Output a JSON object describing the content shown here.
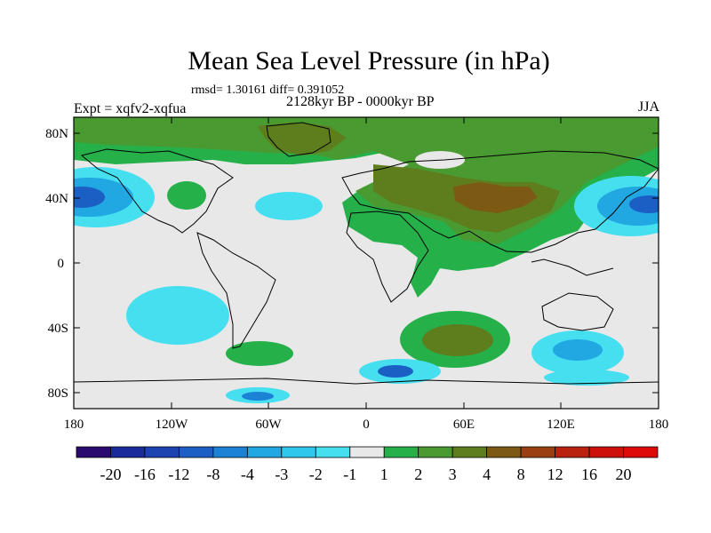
{
  "header": {
    "title": "Mean Sea Level Pressure (in hPa)",
    "stats": "rmsd= 1.30161 diff= 0.391052",
    "period": "2128kyr BP - 0000kyr BP",
    "experiment": "Expt = xqfv2-xqfua",
    "season": "JJA"
  },
  "map": {
    "lat_labels": [
      "80N",
      "40N",
      "0",
      "40S",
      "80S"
    ],
    "lon_labels": [
      "180",
      "120W",
      "60W",
      "0",
      "60E",
      "120E",
      "180"
    ],
    "background_color": "#e8e8e8"
  },
  "colorbar": {
    "labels": [
      "-20",
      "-16",
      "-12",
      "-8",
      "-4",
      "-3",
      "-2",
      "-1",
      "1",
      "2",
      "3",
      "4",
      "8",
      "12",
      "16",
      "20"
    ],
    "colors": [
      "#2a0a6e",
      "#1a2a9a",
      "#1c43b0",
      "#1b5fc4",
      "#1c82d6",
      "#21a7e2",
      "#2fc8ec",
      "#46dff0",
      "#e8e8e8",
      "#26b04a",
      "#4a9a32",
      "#5e7e1e",
      "#7c5a14",
      "#9a3f12",
      "#b8220e",
      "#cc100a",
      "#de0a0a"
    ]
  }
}
